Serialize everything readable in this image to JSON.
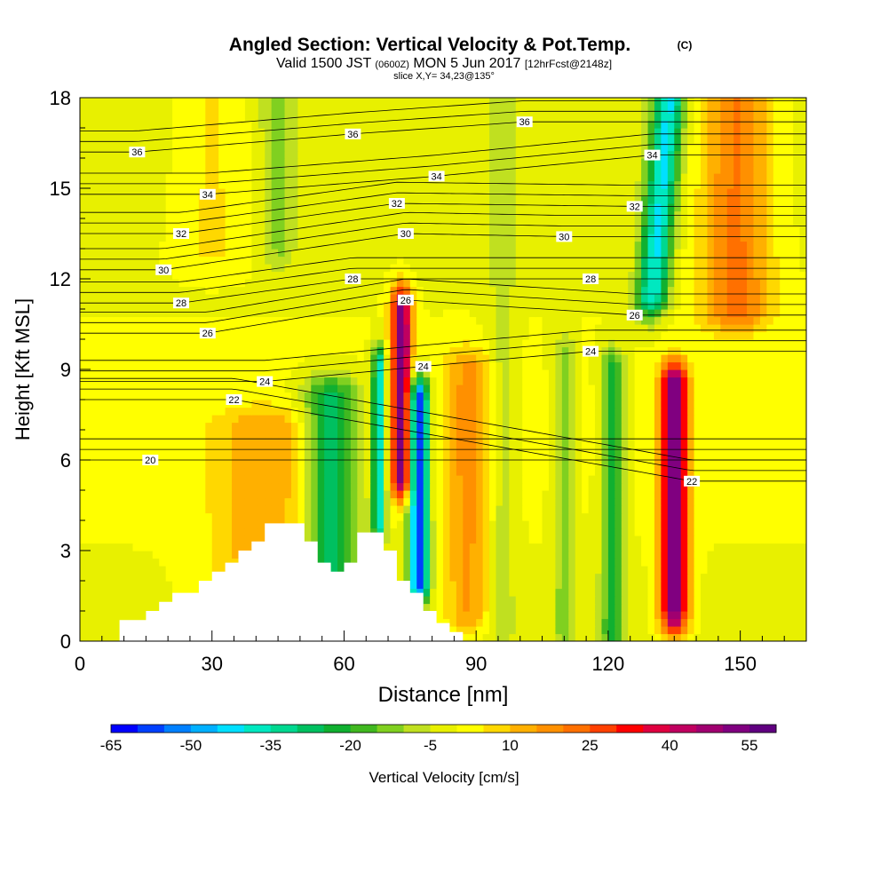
{
  "chart_data": {
    "type": "heatmap",
    "title": "Angled Section: Vertical Velocity & Pot.Temp.",
    "title_unit": "(C)",
    "subtitle_prefix": "Valid 1500 JST",
    "subtitle_utc": "(0600Z)",
    "subtitle_date": "MON 5 Jun 2017",
    "subtitle_forecast": "[12hrFcst@2148z]",
    "slice_label": "slice X,Y= 34,23@135°",
    "xlabel": "Distance [nm]",
    "ylabel": "Height [Kft MSL]",
    "xlim": [
      0,
      165
    ],
    "ylim": [
      0,
      18
    ],
    "x_ticks": [
      "0",
      "30",
      "60",
      "90",
      "120",
      "150"
    ],
    "y_ticks": [
      "0",
      "3",
      "6",
      "9",
      "12",
      "15",
      "18"
    ],
    "colorbar": {
      "label": "Vertical Velocity [cm/s]",
      "tick_labels": [
        "-65",
        "-50",
        "-35",
        "-20",
        "-5",
        "10",
        "25",
        "40",
        "55"
      ],
      "range": [
        -65,
        60
      ],
      "colors": [
        "#0000ff",
        "#0040ff",
        "#0080ff",
        "#00b0ff",
        "#00e0ff",
        "#00e8c0",
        "#00d890",
        "#00c060",
        "#10b030",
        "#40b820",
        "#80d020",
        "#c0e020",
        "#e8f000",
        "#ffff00",
        "#ffd800",
        "#ffb000",
        "#ff9000",
        "#ff7000",
        "#ff4000",
        "#ff0000",
        "#e00040",
        "#c00060",
        "#a00070",
        "#800080",
        "#600080"
      ]
    },
    "vertical_velocity_features": [
      {
        "x": 130,
        "y_bottom": 11.5,
        "y_top": 18,
        "x_shift_per_kft": 0.6,
        "width": 3.5,
        "peak": -40
      },
      {
        "x": 121,
        "y_bottom": 0.3,
        "y_top": 9,
        "width": 2.6,
        "peak": -22
      },
      {
        "x": 110,
        "y_bottom": 0.5,
        "y_top": 9.5,
        "width": 2.5,
        "peak": -12
      },
      {
        "x": 96,
        "y_bottom": 0.5,
        "y_top": 18,
        "width": 3,
        "peak": -8
      },
      {
        "x": 135,
        "y_bottom": 1,
        "y_top": 8.5,
        "width": 3,
        "peak": 55
      },
      {
        "x": 149,
        "y_bottom": 11,
        "y_top": 18,
        "width": 8,
        "peak": 22
      },
      {
        "x": 88,
        "y_bottom": 1,
        "y_top": 9,
        "width": 5,
        "peak": 16
      },
      {
        "x": 73,
        "y_bottom": 5.5,
        "y_top": 11,
        "width": 2.2,
        "peak": 55
      },
      {
        "x": 77,
        "y_bottom": 2,
        "y_top": 8,
        "width": 2.2,
        "peak": -60
      },
      {
        "x": 68,
        "y_bottom": 4,
        "y_top": 9,
        "width": 1.5,
        "peak": -40
      },
      {
        "x": 57,
        "y_bottom": 2.5,
        "y_top": 8,
        "width": 6,
        "peak": -30
      },
      {
        "x": 42,
        "y_bottom": 1,
        "y_top": 7,
        "width": 12,
        "peak": 14
      },
      {
        "x": 30,
        "y_bottom": 13,
        "y_top": 18,
        "width": 8,
        "peak": 7
      },
      {
        "x": 45,
        "y_bottom": 13,
        "y_top": 18,
        "width": 4,
        "peak": -10
      }
    ],
    "terrain": [
      {
        "x": 0,
        "height": 0
      },
      {
        "x": 9,
        "height": 0.7
      },
      {
        "x": 15,
        "height": 1
      },
      {
        "x": 18,
        "height": 1.3
      },
      {
        "x": 21,
        "height": 1.6
      },
      {
        "x": 27,
        "height": 2
      },
      {
        "x": 30,
        "height": 2.3
      },
      {
        "x": 33,
        "height": 2.6
      },
      {
        "x": 36,
        "height": 3
      },
      {
        "x": 39,
        "height": 3.3
      },
      {
        "x": 42,
        "height": 3.9
      },
      {
        "x": 51,
        "height": 3.3
      },
      {
        "x": 54,
        "height": 2.6
      },
      {
        "x": 57,
        "height": 2.3
      },
      {
        "x": 60,
        "height": 2.6
      },
      {
        "x": 63,
        "height": 3.6
      },
      {
        "x": 69,
        "height": 3
      },
      {
        "x": 72,
        "height": 2
      },
      {
        "x": 75,
        "height": 1.6
      },
      {
        "x": 78,
        "height": 1
      },
      {
        "x": 81,
        "height": 0.6
      },
      {
        "x": 84,
        "height": 0.3
      },
      {
        "x": 87,
        "height": 0
      }
    ],
    "potential_temperature_labels": [
      {
        "text": "36",
        "x": 13,
        "y": 16.2
      },
      {
        "text": "36",
        "x": 62,
        "y": 16.8
      },
      {
        "text": "36",
        "x": 101,
        "y": 17.2
      },
      {
        "text": "34",
        "x": 29,
        "y": 14.8
      },
      {
        "text": "34",
        "x": 81,
        "y": 15.4
      },
      {
        "text": "34",
        "x": 130,
        "y": 16.1
      },
      {
        "text": "32",
        "x": 23,
        "y": 13.5
      },
      {
        "text": "32",
        "x": 72,
        "y": 14.5
      },
      {
        "text": "32",
        "x": 126,
        "y": 14.4
      },
      {
        "text": "30",
        "x": 19,
        "y": 12.3
      },
      {
        "text": "30",
        "x": 74,
        "y": 13.5
      },
      {
        "text": "30",
        "x": 110,
        "y": 13.4
      },
      {
        "text": "28",
        "x": 23,
        "y": 11.2
      },
      {
        "text": "28",
        "x": 62,
        "y": 12
      },
      {
        "text": "28",
        "x": 116,
        "y": 12
      },
      {
        "text": "26",
        "x": 29,
        "y": 10.2
      },
      {
        "text": "26",
        "x": 74,
        "y": 11.3
      },
      {
        "text": "26",
        "x": 126,
        "y": 10.8
      },
      {
        "text": "24",
        "x": 42,
        "y": 8.6
      },
      {
        "text": "24",
        "x": 78,
        "y": 9.1
      },
      {
        "text": "24",
        "x": 116,
        "y": 9.6
      },
      {
        "text": "22",
        "x": 35,
        "y": 8
      },
      {
        "text": "22",
        "x": 139,
        "y": 5.3
      },
      {
        "text": "20",
        "x": 16,
        "y": 6
      }
    ]
  }
}
